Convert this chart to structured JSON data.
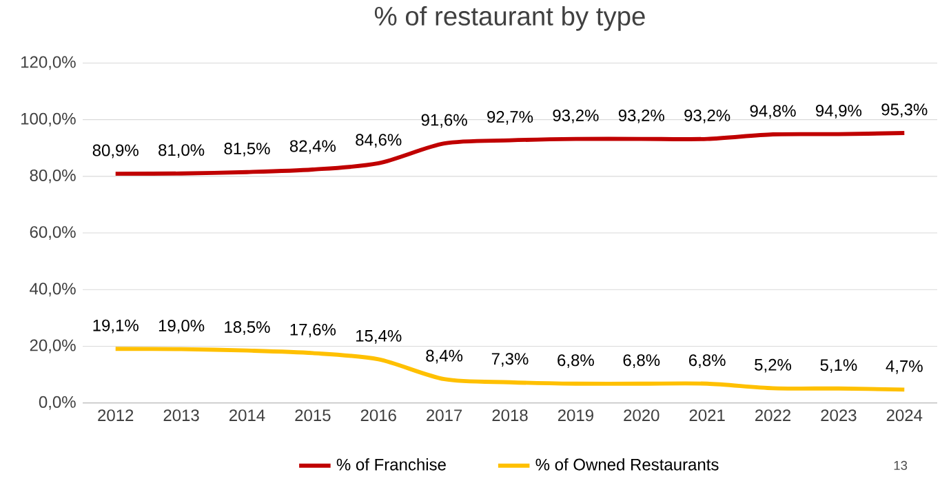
{
  "chart_data": {
    "type": "line",
    "title": "% of restaurant by type",
    "categories": [
      "2012",
      "2013",
      "2014",
      "2015",
      "2016",
      "2017",
      "2018",
      "2019",
      "2020",
      "2021",
      "2022",
      "2023",
      "2024"
    ],
    "series": [
      {
        "name": "% of Franchise",
        "color": "#c00000",
        "values": [
          80.9,
          81.0,
          81.5,
          82.4,
          84.6,
          91.6,
          92.7,
          93.2,
          93.2,
          93.2,
          94.8,
          94.9,
          95.3
        ],
        "value_labels": [
          "80,9%",
          "81,0%",
          "81,5%",
          "82,4%",
          "84,6%",
          "91,6%",
          "92,7%",
          "93,2%",
          "93,2%",
          "93,2%",
          "94,8%",
          "94,9%",
          "95,3%"
        ]
      },
      {
        "name": "% of Owned Restaurants",
        "color": "#ffc000",
        "values": [
          19.1,
          19.0,
          18.5,
          17.6,
          15.4,
          8.4,
          7.3,
          6.8,
          6.8,
          6.8,
          5.2,
          5.1,
          4.7
        ],
        "value_labels": [
          "19,1%",
          "19,0%",
          "18,5%",
          "17,6%",
          "15,4%",
          "8,4%",
          "7,3%",
          "6,8%",
          "6,8%",
          "6,8%",
          "5,2%",
          "5,1%",
          "4,7%"
        ]
      }
    ],
    "ylim": [
      0,
      120
    ],
    "yticks": [
      {
        "value": 0,
        "label": "0,0%"
      },
      {
        "value": 20,
        "label": "20,0%"
      },
      {
        "value": 40,
        "label": "40,0%"
      },
      {
        "value": 60,
        "label": "60,0%"
      },
      {
        "value": 80,
        "label": "80,0%"
      },
      {
        "value": 100,
        "label": "100,0%"
      },
      {
        "value": 120,
        "label": "120,0%"
      }
    ],
    "grid": "y",
    "legend": "bottom",
    "line_style": "solid",
    "annotations": [
      "13"
    ]
  }
}
